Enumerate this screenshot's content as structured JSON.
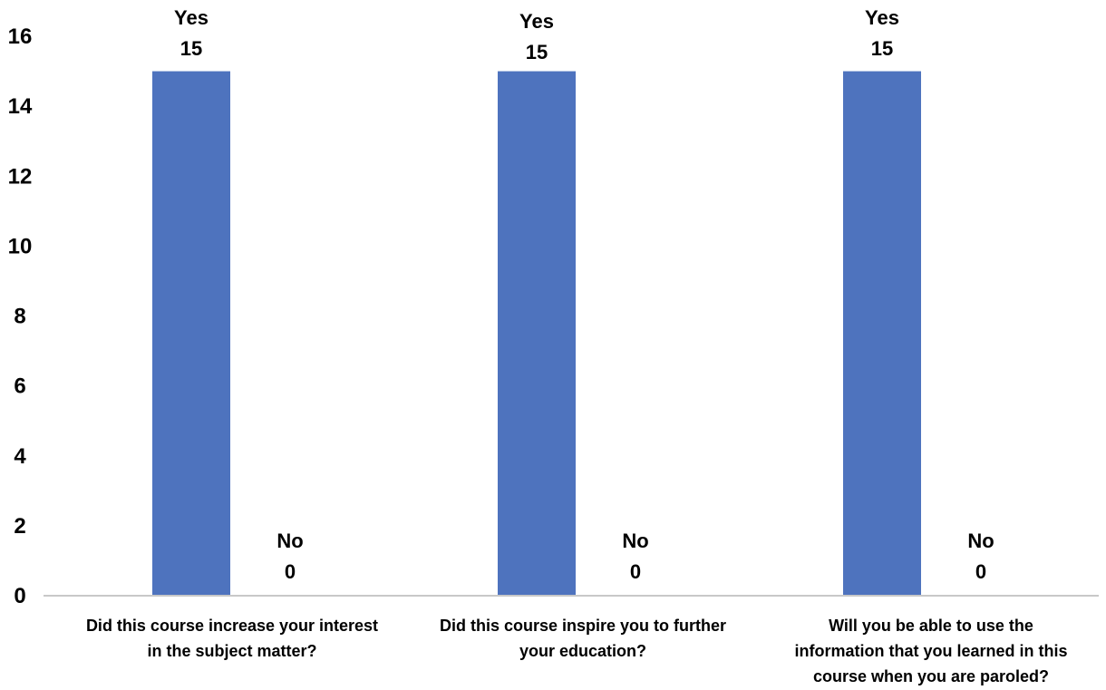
{
  "colors": {
    "bar": "#4e73be",
    "axis": "#c8c8c8",
    "text": "#000000"
  },
  "chart_data": {
    "type": "bar",
    "categories": [
      [
        "Did this course increase your interest",
        "in the subject matter?"
      ],
      [
        "Did this course inspire you to further",
        "your education?"
      ],
      [
        "Will you be able to use the",
        "information that you learned in this",
        "course when you are paroled?"
      ]
    ],
    "series": [
      {
        "name": "Yes",
        "values": [
          15,
          15,
          15
        ]
      },
      {
        "name": "No",
        "values": [
          0,
          0,
          0
        ]
      }
    ],
    "y_ticks": [
      "0",
      "2",
      "4",
      "6",
      "8",
      "10",
      "12",
      "14",
      "16"
    ],
    "ylim": [
      0,
      16
    ],
    "grid": false,
    "legend": "none"
  }
}
